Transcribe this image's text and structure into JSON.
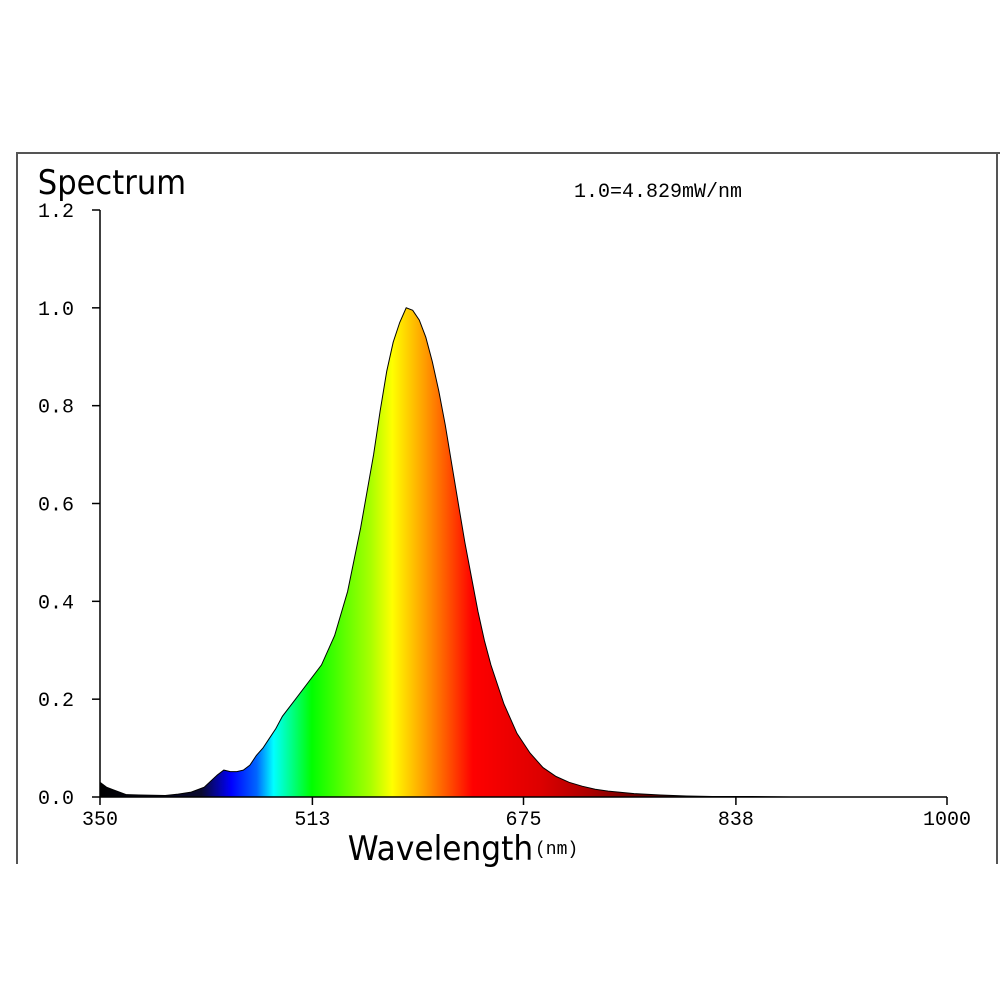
{
  "chart_data": {
    "type": "area",
    "title": "Spectrum",
    "annotation": "1.0=4.829mW/nm",
    "xlabel": "Wavelength",
    "xunit": "(nm)",
    "xlim": [
      350,
      1000
    ],
    "ylim": [
      0,
      1.2
    ],
    "x_ticks": [
      350,
      513,
      675,
      838,
      1000
    ],
    "x_tick_labels": [
      "350",
      "513",
      "675",
      "838",
      "1000"
    ],
    "y_ticks": [
      0,
      0.2,
      0.4,
      0.6,
      0.8,
      1.0,
      1.2
    ],
    "y_tick_labels": [
      "0.0",
      "0.2",
      "0.4",
      "0.6",
      "0.8",
      "1.0",
      "1.2"
    ],
    "grid": false,
    "fill": "visible-spectrum-gradient",
    "series": [
      {
        "x": [
          350,
          355,
          360,
          370,
          380,
          400,
          410,
          420,
          430,
          440,
          445,
          450,
          455,
          460,
          465,
          470,
          475,
          480,
          485,
          490,
          500,
          510,
          520,
          530,
          540,
          550,
          560,
          565,
          570,
          575,
          580,
          585,
          590,
          595,
          600,
          605,
          610,
          615,
          620,
          625,
          630,
          635,
          640,
          645,
          650,
          660,
          670,
          680,
          690,
          700,
          710,
          720,
          730,
          740,
          760,
          780,
          800,
          820,
          850,
          880,
          900,
          950,
          1000
        ],
        "y": [
          0.03,
          0.02,
          0.015,
          0.005,
          0.004,
          0.003,
          0.006,
          0.01,
          0.02,
          0.045,
          0.055,
          0.052,
          0.052,
          0.055,
          0.065,
          0.085,
          0.1,
          0.12,
          0.14,
          0.165,
          0.2,
          0.235,
          0.27,
          0.33,
          0.42,
          0.55,
          0.7,
          0.79,
          0.87,
          0.93,
          0.97,
          1.0,
          0.995,
          0.975,
          0.94,
          0.89,
          0.83,
          0.76,
          0.68,
          0.6,
          0.52,
          0.45,
          0.38,
          0.32,
          0.27,
          0.19,
          0.13,
          0.09,
          0.06,
          0.042,
          0.03,
          0.022,
          0.016,
          0.012,
          0.007,
          0.004,
          0.002,
          0.001,
          0.001,
          0.0,
          0.0,
          0.0,
          0.0
        ]
      }
    ]
  }
}
